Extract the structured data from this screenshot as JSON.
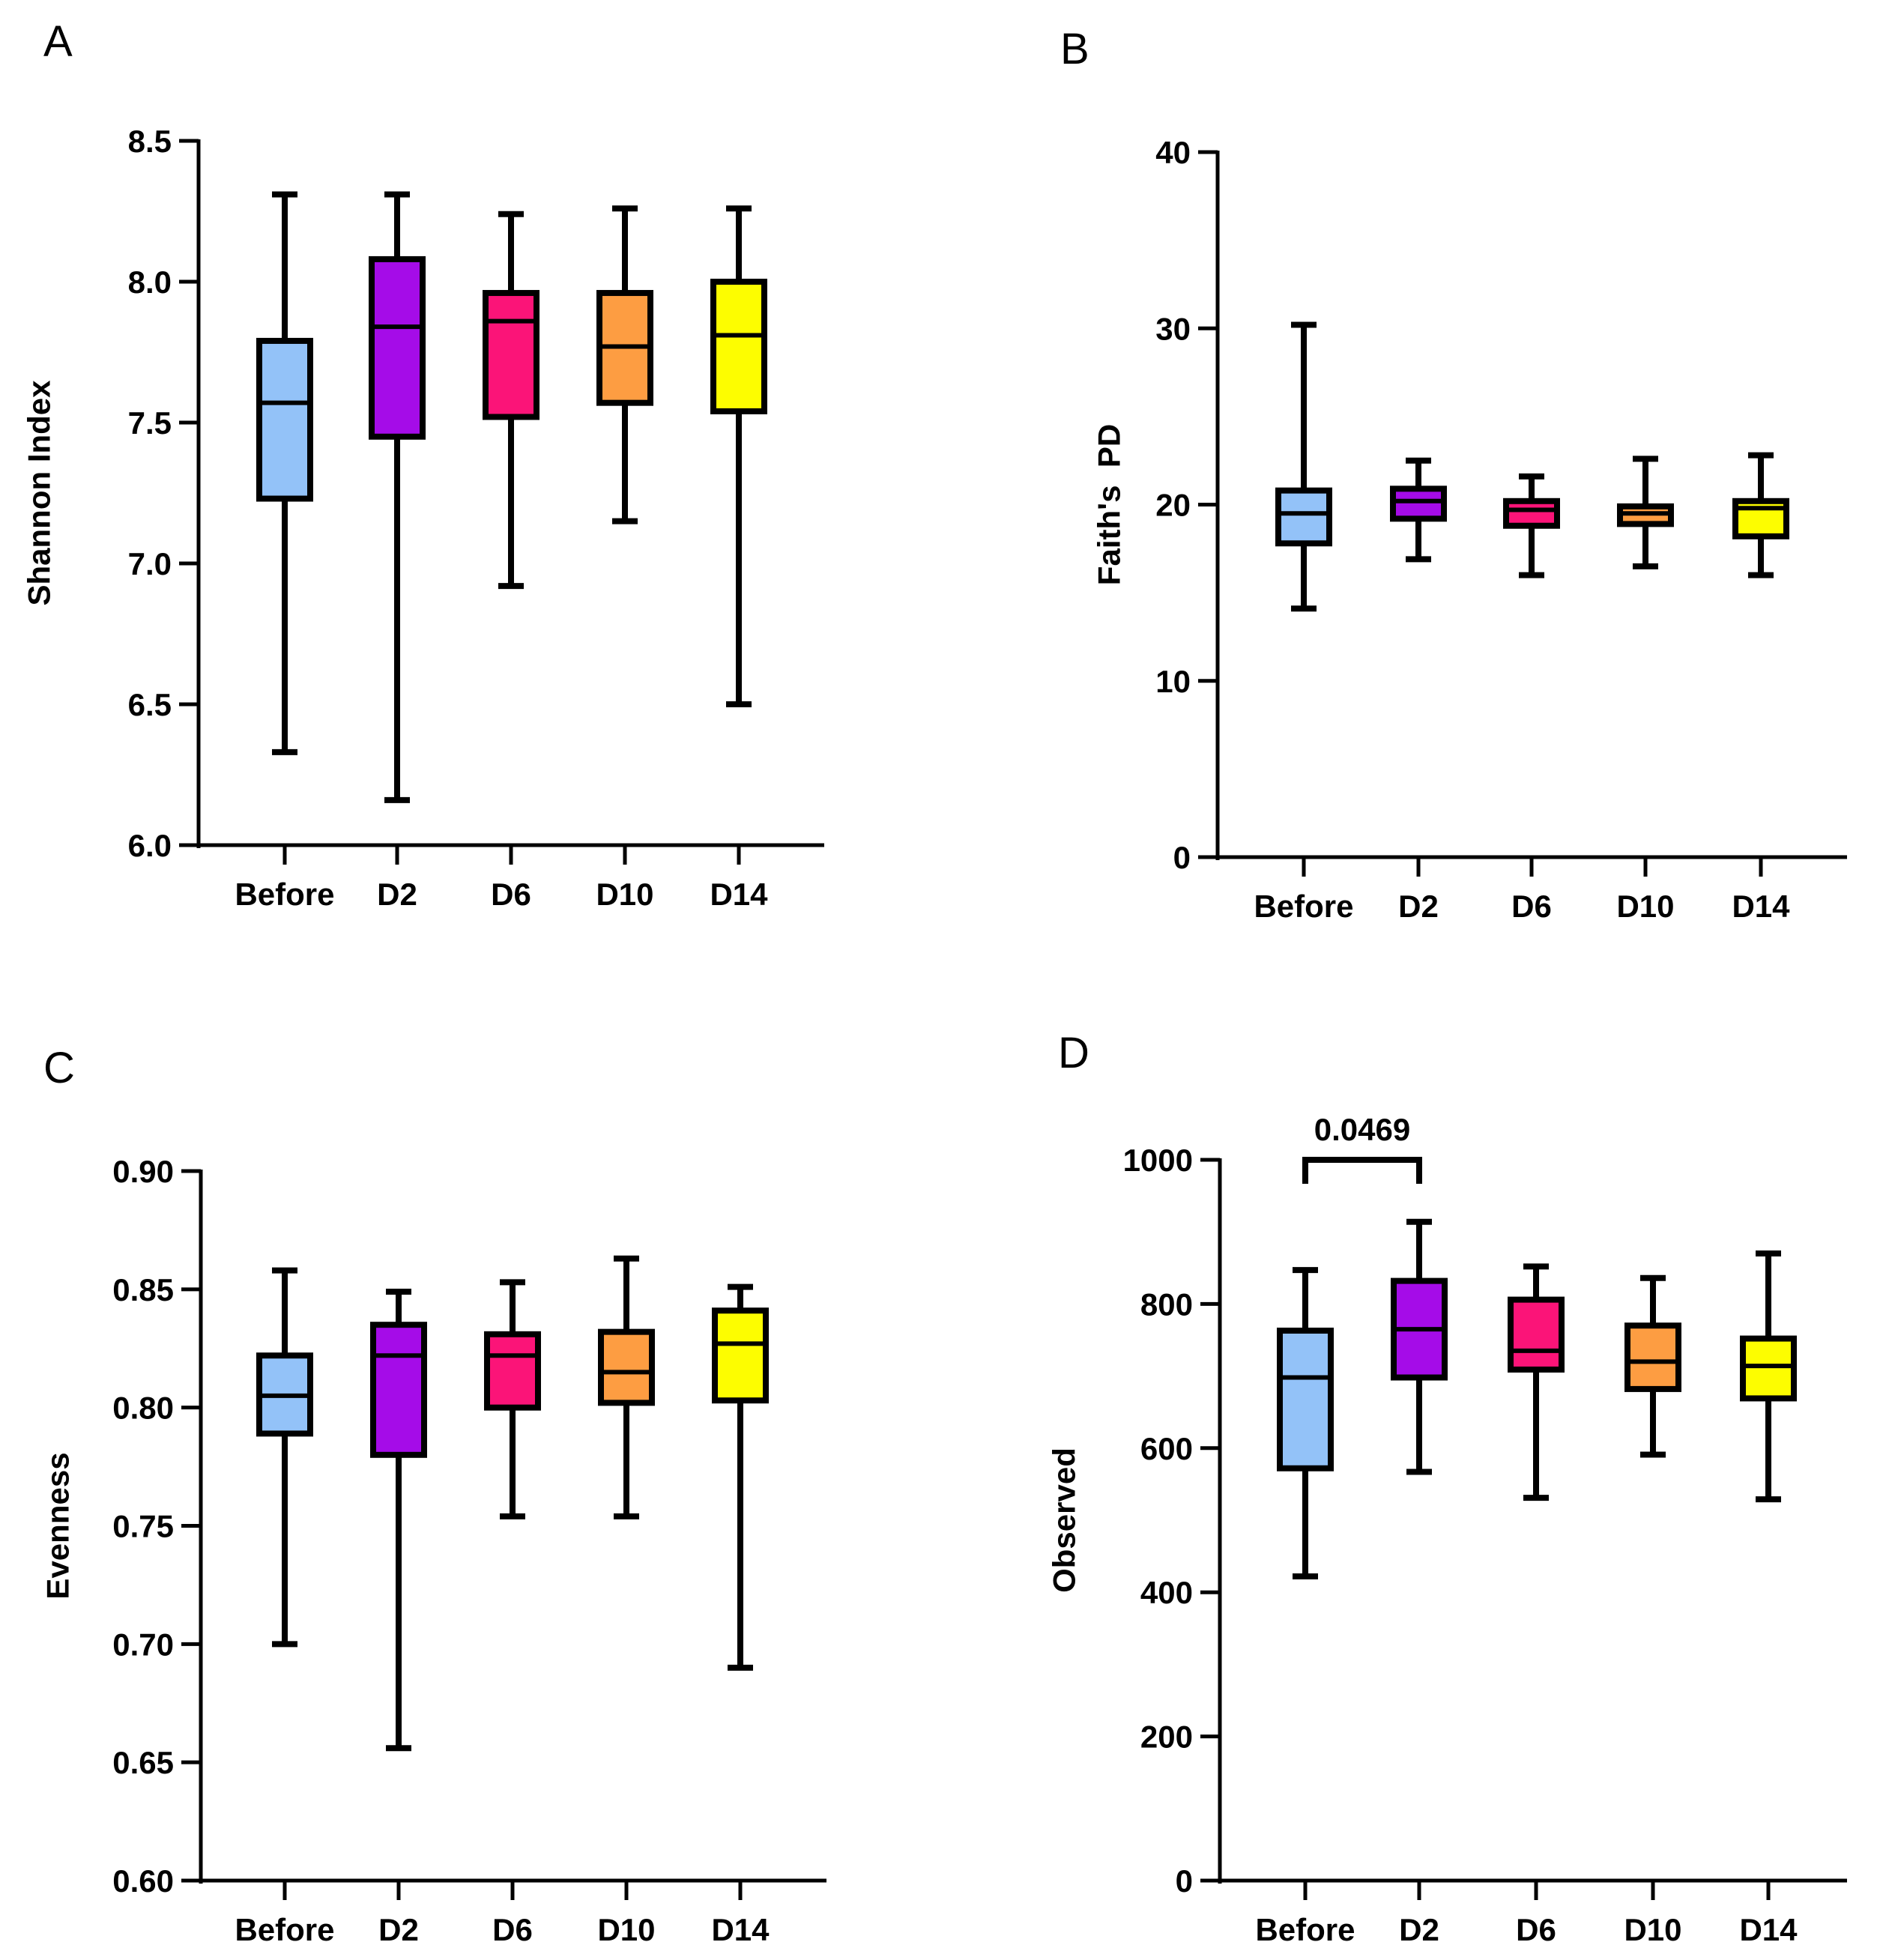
{
  "chart_data": [
    {
      "type": "box",
      "panel": "A",
      "ylabel": "Shannon Index",
      "xlabel": "",
      "ylim": [
        6.0,
        8.5
      ],
      "yticks": [
        6.0,
        6.5,
        7.0,
        7.5,
        8.0,
        8.5
      ],
      "ytick_labels": [
        "6.0",
        "6.5",
        "7.0",
        "7.5",
        "8.0",
        "8.5"
      ],
      "categories": [
        "Before",
        "D2",
        "D6",
        "D10",
        "D14"
      ],
      "colors": [
        "#93c2f8",
        "#a50ce8",
        "#fb1478",
        "#fd9d42",
        "#fdfd00"
      ],
      "boxes": [
        {
          "min": 6.33,
          "q1": 7.23,
          "median": 7.57,
          "q3": 7.79,
          "max": 8.31
        },
        {
          "min": 6.16,
          "q1": 7.45,
          "median": 7.84,
          "q3": 8.08,
          "max": 8.31
        },
        {
          "min": 6.92,
          "q1": 7.52,
          "median": 7.86,
          "q3": 7.96,
          "max": 8.24
        },
        {
          "min": 7.15,
          "q1": 7.57,
          "median": 7.77,
          "q3": 7.96,
          "max": 8.26
        },
        {
          "min": 6.5,
          "q1": 7.54,
          "median": 7.81,
          "q3": 8.0,
          "max": 8.26
        }
      ]
    },
    {
      "type": "box",
      "panel": "B",
      "ylabel": "Faith's  PD",
      "xlabel": "",
      "ylim": [
        0,
        40
      ],
      "yticks": [
        0,
        10,
        20,
        30,
        40
      ],
      "ytick_labels": [
        "0",
        "10",
        "20",
        "30",
        "40"
      ],
      "categories": [
        "Before",
        "D2",
        "D6",
        "D10",
        "D14"
      ],
      "colors": [
        "#93c2f8",
        "#a50ce8",
        "#fb1478",
        "#fd9d42",
        "#fdfd00"
      ],
      "boxes": [
        {
          "min": 14.1,
          "q1": 17.8,
          "median": 19.5,
          "q3": 20.8,
          "max": 30.2
        },
        {
          "min": 16.9,
          "q1": 19.2,
          "median": 20.2,
          "q3": 20.9,
          "max": 22.5
        },
        {
          "min": 16.0,
          "q1": 18.8,
          "median": 19.7,
          "q3": 20.2,
          "max": 21.6
        },
        {
          "min": 16.5,
          "q1": 18.9,
          "median": 19.5,
          "q3": 19.9,
          "max": 22.6
        },
        {
          "min": 16.0,
          "q1": 18.2,
          "median": 19.8,
          "q3": 20.2,
          "max": 22.8
        }
      ]
    },
    {
      "type": "box",
      "panel": "C",
      "ylabel": "Evenness",
      "xlabel": "",
      "ylim": [
        0.6,
        0.9
      ],
      "yticks": [
        0.6,
        0.65,
        0.7,
        0.75,
        0.8,
        0.85,
        0.9
      ],
      "ytick_labels": [
        "0.60",
        "0.65",
        "0.70",
        "0.75",
        "0.80",
        "0.85",
        "0.90"
      ],
      "categories": [
        "Before",
        "D2",
        "D6",
        "D10",
        "D14"
      ],
      "colors": [
        "#93c2f8",
        "#a50ce8",
        "#fb1478",
        "#fd9d42",
        "#fdfd00"
      ],
      "boxes": [
        {
          "min": 0.7,
          "q1": 0.789,
          "median": 0.805,
          "q3": 0.822,
          "max": 0.858
        },
        {
          "min": 0.656,
          "q1": 0.78,
          "median": 0.822,
          "q3": 0.835,
          "max": 0.849
        },
        {
          "min": 0.754,
          "q1": 0.8,
          "median": 0.822,
          "q3": 0.831,
          "max": 0.853
        },
        {
          "min": 0.754,
          "q1": 0.802,
          "median": 0.815,
          "q3": 0.832,
          "max": 0.863
        },
        {
          "min": 0.69,
          "q1": 0.803,
          "median": 0.827,
          "q3": 0.841,
          "max": 0.851
        }
      ]
    },
    {
      "type": "box",
      "panel": "D",
      "ylabel": "Observed",
      "xlabel": "",
      "ylim": [
        0,
        1000
      ],
      "yticks": [
        0,
        200,
        400,
        600,
        800,
        1000
      ],
      "ytick_labels": [
        "0",
        "200",
        "400",
        "600",
        "800",
        "1000"
      ],
      "categories": [
        "Before",
        "D2",
        "D6",
        "D10",
        "D14"
      ],
      "colors": [
        "#93c2f8",
        "#a50ce8",
        "#fb1478",
        "#fd9d42",
        "#fdfd00"
      ],
      "boxes": [
        {
          "min": 422,
          "q1": 572,
          "median": 698,
          "q3": 763,
          "max": 847
        },
        {
          "min": 567,
          "q1": 698,
          "median": 765,
          "q3": 832,
          "max": 914
        },
        {
          "min": 531,
          "q1": 709,
          "median": 735,
          "q3": 806,
          "max": 852
        },
        {
          "min": 591,
          "q1": 682,
          "median": 720,
          "q3": 770,
          "max": 836
        },
        {
          "min": 529,
          "q1": 669,
          "median": 714,
          "q3": 752,
          "max": 870
        }
      ],
      "annotations": [
        {
          "text": "0.0469",
          "from": "Before",
          "to": "D2",
          "bracket_y": 1000
        }
      ]
    }
  ]
}
